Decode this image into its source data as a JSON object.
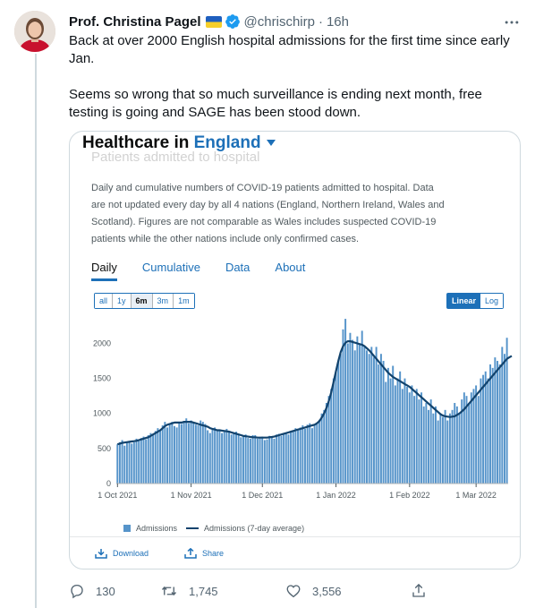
{
  "tweet": {
    "author_name": "Prof. Christina Pagel",
    "handle": "@chrischirp",
    "separator": "·",
    "time": "16h",
    "text_lines": [
      "Back at over 2000 English hospital admissions for the first time since early Jan.",
      "Seems so wrong that so much surveillance is ending next month, free testing is going and SAGE has been stood down."
    ],
    "replies": "130",
    "retweets": "1,745",
    "likes": "3,556"
  },
  "card": {
    "title_prefix": "Healthcare in",
    "title_region": "England",
    "ghost_heading": "Patients admitted to hospital",
    "description": "Daily and cumulative numbers of COVID-19 patients admitted to hospital. Data are not updated every day by all 4 nations (England, Northern Ireland, Wales and Scotland). Figures are not comparable as Wales includes suspected COVID-19 patients while the other nations include only confirmed cases.",
    "tabs": [
      {
        "label": "Daily",
        "active": true
      },
      {
        "label": "Cumulative",
        "active": false
      },
      {
        "label": "Data",
        "active": false
      },
      {
        "label": "About",
        "active": false
      }
    ],
    "ranges": [
      {
        "label": "all",
        "active": false
      },
      {
        "label": "1y",
        "active": false
      },
      {
        "label": "6m",
        "active": true
      },
      {
        "label": "3m",
        "active": false
      },
      {
        "label": "1m",
        "active": false
      }
    ],
    "scales": [
      {
        "label": "Linear",
        "active": true
      },
      {
        "label": "Log",
        "active": false
      }
    ],
    "legend_bar": "Admissions",
    "legend_line": "Admissions (7-day average)",
    "download_label": "Download",
    "share_label": "Share"
  },
  "colors": {
    "bar": "#5694ca",
    "line": "#12436d",
    "link": "#1d70b8",
    "grid": "#e6e6e6"
  },
  "chart_data": {
    "type": "bar",
    "title": "",
    "xlabel": "",
    "ylabel": "",
    "ylim": [
      0,
      2300
    ],
    "yticks": [
      0,
      500,
      1000,
      1500,
      2000
    ],
    "xtick_labels": [
      "1 Oct 2021",
      "1 Nov 2021",
      "1 Dec 2021",
      "1 Jan 2022",
      "1 Feb 2022",
      "1 Mar 2022"
    ],
    "xtick_days": [
      0,
      31,
      61,
      92,
      123,
      151
    ],
    "start_date": "2021-10-01",
    "grid": false,
    "legend_position": "bottom",
    "series": [
      {
        "name": "Admissions",
        "type": "bar",
        "values": [
          560,
          590,
          620,
          540,
          580,
          600,
          570,
          590,
          640,
          610,
          650,
          670,
          630,
          690,
          720,
          700,
          750,
          790,
          760,
          830,
          880,
          800,
          860,
          880,
          820,
          800,
          870,
          850,
          880,
          930,
          860,
          900,
          870,
          840,
          830,
          900,
          880,
          850,
          760,
          720,
          780,
          800,
          770,
          760,
          720,
          760,
          780,
          740,
          700,
          710,
          740,
          690,
          660,
          680,
          700,
          650,
          640,
          690,
          690,
          640,
          660,
          670,
          620,
          630,
          680,
          660,
          640,
          700,
          710,
          680,
          720,
          730,
          700,
          740,
          760,
          790,
          760,
          800,
          830,
          780,
          840,
          860,
          790,
          830,
          860,
          910,
          1000,
          1050,
          1150,
          1250,
          1350,
          1500,
          1600,
          1750,
          1850,
          2200,
          2350,
          2000,
          2150,
          2050,
          1900,
          2100,
          2000,
          2180,
          1950,
          1900,
          1850,
          1950,
          1800,
          1950,
          1700,
          1850,
          1750,
          1450,
          1650,
          1500,
          1680,
          1400,
          1500,
          1600,
          1350,
          1500,
          1380,
          1300,
          1400,
          1250,
          1350,
          1200,
          1300,
          1100,
          1150,
          1050,
          1200,
          1000,
          1100,
          900,
          980,
          950,
          1050,
          900,
          1000,
          1050,
          1150,
          1100,
          1000,
          1200,
          1300,
          1250,
          1150,
          1300,
          1350,
          1400,
          1250,
          1500,
          1550,
          1600,
          1500,
          1700,
          1650,
          1800,
          1750,
          1700,
          1950,
          1850,
          2080
        ]
      },
      {
        "name": "Admissions (7-day average)",
        "type": "line",
        "values": [
          560,
          570,
          580,
          585,
          590,
          595,
          600,
          605,
          610,
          620,
          630,
          640,
          650,
          660,
          680,
          700,
          720,
          740,
          760,
          790,
          820,
          840,
          850,
          860,
          870,
          870,
          870,
          870,
          880,
          880,
          880,
          880,
          870,
          860,
          850,
          840,
          830,
          820,
          810,
          790,
          780,
          770,
          760,
          760,
          755,
          750,
          745,
          740,
          730,
          720,
          710,
          700,
          690,
          680,
          675,
          670,
          665,
          660,
          660,
          655,
          655,
          655,
          655,
          655,
          660,
          665,
          670,
          680,
          690,
          700,
          710,
          720,
          730,
          740,
          750,
          760,
          770,
          780,
          790,
          800,
          810,
          820,
          830,
          840,
          860,
          890,
          940,
          1000,
          1080,
          1180,
          1300,
          1450,
          1600,
          1750,
          1880,
          1960,
          2010,
          2030,
          2030,
          2020,
          2010,
          2000,
          1990,
          1980,
          1960,
          1930,
          1900,
          1860,
          1820,
          1780,
          1740,
          1700,
          1660,
          1620,
          1580,
          1550,
          1520,
          1500,
          1480,
          1460,
          1440,
          1420,
          1400,
          1380,
          1350,
          1320,
          1290,
          1260,
          1230,
          1200,
          1170,
          1140,
          1110,
          1080,
          1050,
          1020,
          990,
          970,
          960,
          955,
          950,
          955,
          960,
          980,
          1000,
          1030,
          1060,
          1100,
          1140,
          1180,
          1220,
          1260,
          1300,
          1340,
          1380,
          1420,
          1460,
          1500,
          1540,
          1580,
          1620,
          1660,
          1700,
          1740,
          1780,
          1800,
          1820
        ]
      }
    ]
  }
}
